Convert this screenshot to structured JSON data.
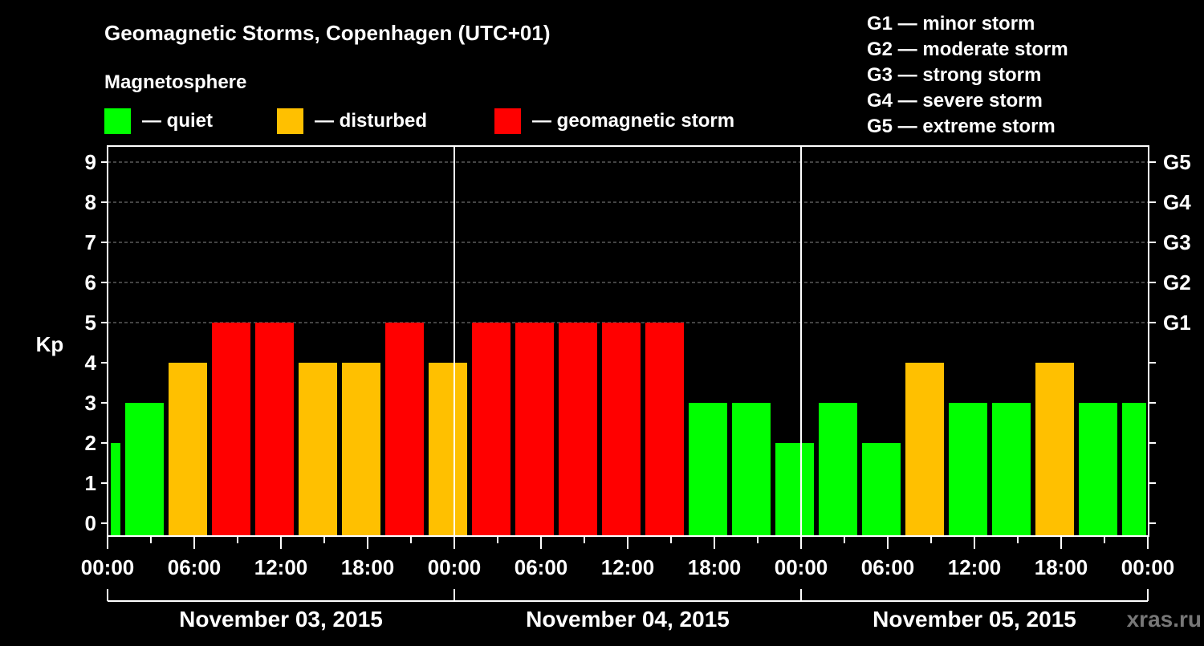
{
  "chart_data": {
    "type": "bar",
    "title": "Geomagnetic Storms, Copenhagen (UTC+01)",
    "subtitle": "Magnetosphere",
    "legend": [
      {
        "label": "— quiet",
        "color": "#00ff00"
      },
      {
        "label": "— disturbed",
        "color": "#ffc000"
      },
      {
        "label": "— geomagnetic storm",
        "color": "#ff0000"
      }
    ],
    "scale_legend": [
      "G1 — minor storm",
      "G2 — moderate storm",
      "G3 — strong storm",
      "G4 — severe storm",
      "G5 — extreme storm"
    ],
    "ylabel": "Kp",
    "ylim": [
      0,
      9
    ],
    "yticks": [
      "0",
      "1",
      "2",
      "3",
      "4",
      "5",
      "6",
      "7",
      "8",
      "9"
    ],
    "right_ticks": [
      {
        "kp": 5,
        "label": "G1"
      },
      {
        "kp": 6,
        "label": "G2"
      },
      {
        "kp": 7,
        "label": "G3"
      },
      {
        "kp": 8,
        "label": "G4"
      },
      {
        "kp": 9,
        "label": "G5"
      }
    ],
    "xlabel_ticks": [
      "00:00",
      "06:00",
      "12:00",
      "18:00",
      "00:00",
      "06:00",
      "12:00",
      "18:00",
      "00:00",
      "06:00",
      "12:00",
      "18:00",
      "00:00"
    ],
    "days": [
      "November 03, 2015",
      "November 04, 2015",
      "November 05, 2015"
    ],
    "x_unit": "hours from Nov 03 00:00 (UTC+01)",
    "bars": [
      {
        "start": 0,
        "end": 1,
        "kp": 2
      },
      {
        "start": 1,
        "end": 4,
        "kp": 3
      },
      {
        "start": 4,
        "end": 7,
        "kp": 4
      },
      {
        "start": 7,
        "end": 10,
        "kp": 5
      },
      {
        "start": 10,
        "end": 13,
        "kp": 5
      },
      {
        "start": 13,
        "end": 16,
        "kp": 4
      },
      {
        "start": 16,
        "end": 19,
        "kp": 4
      },
      {
        "start": 19,
        "end": 22,
        "kp": 5
      },
      {
        "start": 22,
        "end": 25,
        "kp": 4
      },
      {
        "start": 25,
        "end": 28,
        "kp": 5
      },
      {
        "start": 28,
        "end": 31,
        "kp": 5
      },
      {
        "start": 31,
        "end": 34,
        "kp": 5
      },
      {
        "start": 34,
        "end": 37,
        "kp": 5
      },
      {
        "start": 37,
        "end": 40,
        "kp": 5
      },
      {
        "start": 40,
        "end": 43,
        "kp": 3
      },
      {
        "start": 43,
        "end": 46,
        "kp": 3
      },
      {
        "start": 46,
        "end": 49,
        "kp": 2
      },
      {
        "start": 49,
        "end": 52,
        "kp": 3
      },
      {
        "start": 52,
        "end": 55,
        "kp": 2
      },
      {
        "start": 55,
        "end": 58,
        "kp": 4
      },
      {
        "start": 58,
        "end": 61,
        "kp": 3
      },
      {
        "start": 61,
        "end": 64,
        "kp": 3
      },
      {
        "start": 64,
        "end": 67,
        "kp": 4
      },
      {
        "start": 67,
        "end": 70,
        "kp": 3
      },
      {
        "start": 70,
        "end": 72,
        "kp": 3
      }
    ],
    "colors": {
      "quiet": "#00ff00",
      "disturbed": "#ffc000",
      "storm": "#ff0000",
      "grid": "#888888"
    },
    "grid": true
  },
  "watermark": "xras.ru"
}
